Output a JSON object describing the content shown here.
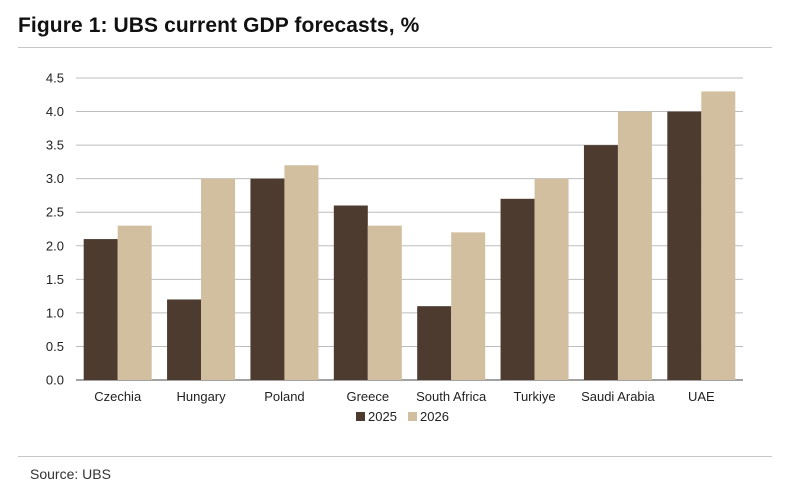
{
  "figure": {
    "title": "Figure 1: UBS current GDP forecasts, %",
    "source": "Source: UBS"
  },
  "chart_data": {
    "type": "bar",
    "title": "Figure 1: UBS current GDP forecasts, %",
    "xlabel": "",
    "ylabel": "",
    "categories": [
      "Czechia",
      "Hungary",
      "Poland",
      "Greece",
      "South Africa",
      "Turkiye",
      "Saudi Arabia",
      "UAE"
    ],
    "series": [
      {
        "name": "2025",
        "color": "#4e3b2f",
        "values": [
          2.1,
          1.2,
          3.0,
          2.6,
          1.1,
          2.7,
          3.5,
          4.0
        ]
      },
      {
        "name": "2026",
        "color": "#d2bfa0",
        "values": [
          2.3,
          3.0,
          3.2,
          2.3,
          2.2,
          3.0,
          4.0,
          4.3
        ]
      }
    ],
    "ylim": [
      0,
      4.5
    ],
    "yticks": [
      "0.0",
      "0.5",
      "1.0",
      "1.5",
      "2.0",
      "2.5",
      "3.0",
      "3.5",
      "4.0",
      "4.5"
    ],
    "grid": true,
    "legend_position": "bottom-center"
  }
}
